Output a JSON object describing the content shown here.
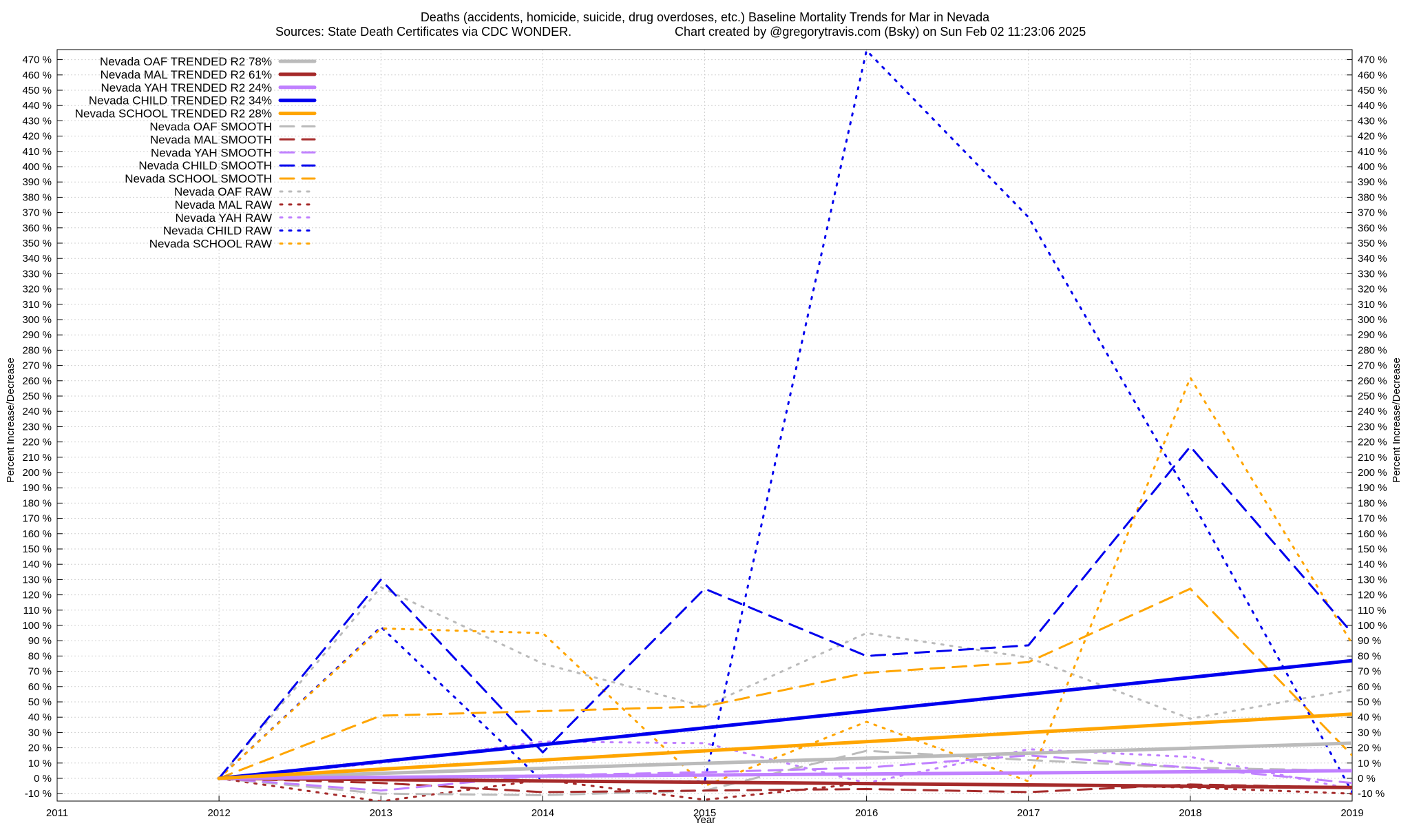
{
  "title_line1": "Deaths (accidents, homicide, suicide, drug overdoses, etc.)  Baseline Mortality Trends for Mar in Nevada",
  "title_line2_left": "Sources: State Death Certificates via CDC WONDER.",
  "title_line2_right": "Chart created by @gregorytravis.com (Bsky) on Sun Feb 02 11:23:06 2025",
  "chart_data": {
    "type": "line",
    "xlabel": "Year",
    "ylabel": "Percent Increase/Decrease",
    "y2label": "Percent Increase/Decrease",
    "xlim": [
      2011,
      2019
    ],
    "ylim": [
      -12,
      475
    ],
    "x_ticks": [
      "2011",
      "2012",
      "2013",
      "2014",
      "2015",
      "2016",
      "2017",
      "2018",
      "2019"
    ],
    "y_ticks": [
      "-10 %",
      "0 %",
      "10 %",
      "20 %",
      "30 %",
      "40 %",
      "50 %",
      "60 %",
      "70 %",
      "80 %",
      "90 %",
      "100 %",
      "110 %",
      "120 %",
      "130 %",
      "140 %",
      "150 %",
      "160 %",
      "170 %",
      "180 %",
      "190 %",
      "200 %",
      "210 %",
      "220 %",
      "230 %",
      "240 %",
      "250 %",
      "260 %",
      "270 %",
      "280 %",
      "290 %",
      "300 %",
      "310 %",
      "320 %",
      "330 %",
      "340 %",
      "350 %",
      "360 %",
      "370 %",
      "380 %",
      "390 %",
      "400 %",
      "410 %",
      "420 %",
      "430 %",
      "440 %",
      "450 %",
      "460 %",
      "470 %"
    ],
    "grid": true,
    "legend_position": "top-left",
    "series": [
      {
        "name": "Nevada OAF TRENDED R2  78%",
        "color": "#bbbbbb",
        "style": "solid",
        "x": [
          2012,
          2019
        ],
        "y": [
          0,
          23
        ]
      },
      {
        "name": "Nevada MAL TRENDED R2  61%",
        "color": "#a52a2a",
        "style": "solid",
        "x": [
          2012,
          2019
        ],
        "y": [
          0,
          -6
        ]
      },
      {
        "name": "Nevada YAH TRENDED R2  24%",
        "color": "#c080ff",
        "style": "solid",
        "x": [
          2012,
          2019
        ],
        "y": [
          0,
          5
        ]
      },
      {
        "name": "Nevada CHILD TRENDED R2  34%",
        "color": "#0000ee",
        "style": "solid",
        "x": [
          2012,
          2019
        ],
        "y": [
          0,
          77
        ]
      },
      {
        "name": "Nevada SCHOOL TRENDED R2  28%",
        "color": "#ffa500",
        "style": "solid",
        "x": [
          2012,
          2019
        ],
        "y": [
          0,
          42
        ]
      },
      {
        "name": "Nevada OAF SMOOTH",
        "color": "#bbbbbb",
        "style": "dashed",
        "x": [
          2012,
          2013,
          2014,
          2015,
          2016,
          2017,
          2018,
          2019
        ],
        "y": [
          0,
          -10,
          -11,
          -8,
          18,
          12,
          7,
          5
        ]
      },
      {
        "name": "Nevada MAL SMOOTH",
        "color": "#a52a2a",
        "style": "dashed",
        "x": [
          2012,
          2013,
          2014,
          2015,
          2016,
          2017,
          2018,
          2019
        ],
        "y": [
          0,
          -3,
          -9,
          -8,
          -7,
          -9,
          -4,
          -6
        ]
      },
      {
        "name": "Nevada YAH SMOOTH",
        "color": "#c080ff",
        "style": "dashed",
        "x": [
          2012,
          2013,
          2014,
          2015,
          2016,
          2017,
          2018,
          2019
        ],
        "y": [
          0,
          -8,
          2,
          4,
          7,
          15,
          7,
          -3
        ]
      },
      {
        "name": "Nevada CHILD SMOOTH",
        "color": "#0000ee",
        "style": "dashed",
        "x": [
          2012,
          2013,
          2014,
          2015,
          2016,
          2017,
          2018,
          2019
        ],
        "y": [
          0,
          130,
          17,
          124,
          80,
          87,
          217,
          95
        ]
      },
      {
        "name": "Nevada SCHOOL SMOOTH",
        "color": "#ffa500",
        "style": "dashed",
        "x": [
          2012,
          2013,
          2014,
          2015,
          2016,
          2017,
          2018,
          2019
        ],
        "y": [
          0,
          41,
          44,
          47,
          69,
          76,
          124,
          15
        ]
      },
      {
        "name": "Nevada OAF RAW",
        "color": "#bbbbbb",
        "style": "dotted",
        "x": [
          2012,
          2013,
          2014,
          2015,
          2016,
          2017,
          2018,
          2019
        ],
        "y": [
          0,
          125,
          75,
          47,
          95,
          79,
          39,
          58
        ]
      },
      {
        "name": "Nevada MAL RAW",
        "color": "#a52a2a",
        "style": "dotted",
        "x": [
          2012,
          2013,
          2014,
          2015,
          2016,
          2017,
          2018,
          2019
        ],
        "y": [
          0,
          -15,
          -1,
          -14,
          -3,
          -4,
          -6,
          -10
        ]
      },
      {
        "name": "Nevada YAH RAW",
        "color": "#c080ff",
        "style": "dotted",
        "x": [
          2012,
          2013,
          2014,
          2015,
          2016,
          2017,
          2018,
          2019
        ],
        "y": [
          0,
          10,
          24,
          23,
          -3,
          19,
          14,
          -7
        ]
      },
      {
        "name": "Nevada CHILD RAW",
        "color": "#0000ee",
        "style": "dotted",
        "x": [
          2012,
          2013,
          2014,
          2015,
          2016,
          2017,
          2018,
          2019
        ],
        "y": [
          0,
          99,
          -2,
          -2,
          476,
          367,
          183,
          -9
        ]
      },
      {
        "name": "Nevada SCHOOL RAW",
        "color": "#ffa500",
        "style": "dotted",
        "x": [
          2012,
          2013,
          2014,
          2015,
          2016,
          2017,
          2018,
          2019
        ],
        "y": [
          0,
          98,
          95,
          -5,
          37,
          -2,
          262,
          88
        ]
      }
    ]
  }
}
